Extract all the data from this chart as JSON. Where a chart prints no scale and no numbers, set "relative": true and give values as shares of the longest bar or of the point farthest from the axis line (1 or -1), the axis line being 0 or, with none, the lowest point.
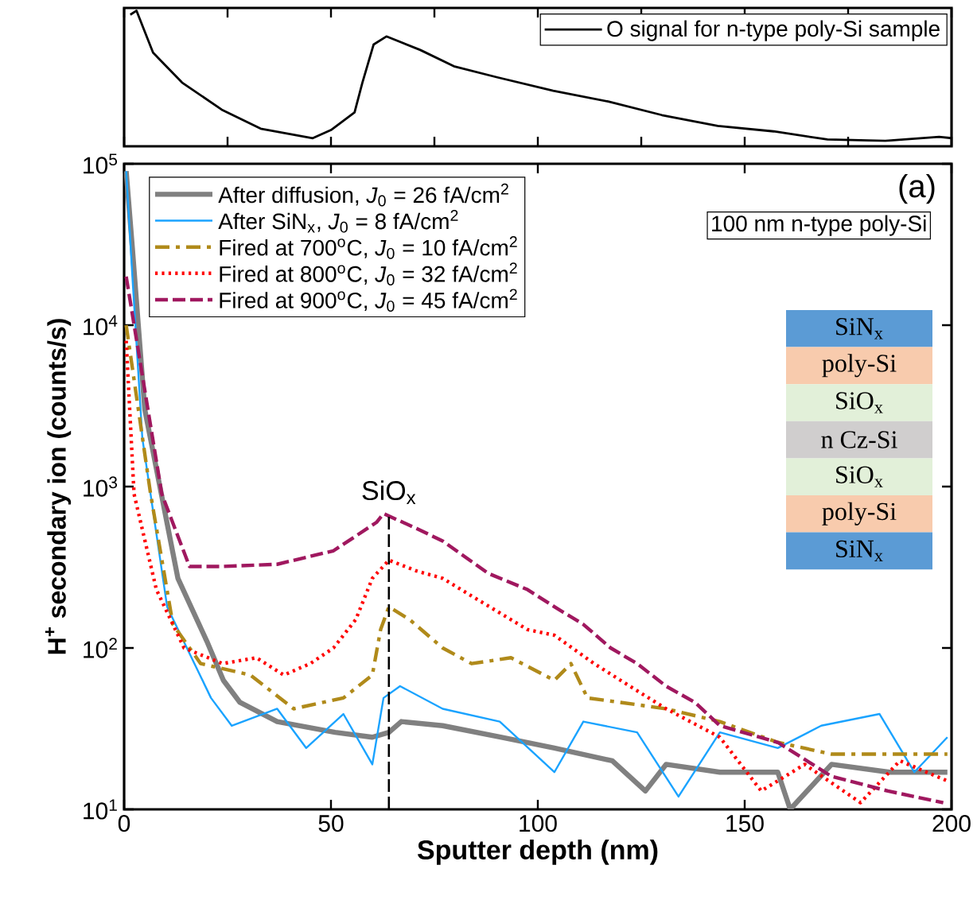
{
  "chart_data": [
    {
      "type": "line",
      "relative": true,
      "xlim": [
        0,
        200
      ],
      "xticks": [
        0,
        25,
        50,
        75,
        100,
        125,
        150,
        175,
        200
      ],
      "tick_labels": false,
      "legend": "top right",
      "series": [
        {
          "name": "O signal for n-type poly-Si sample",
          "color": "#000000",
          "x": [
            1.5,
            3,
            7,
            14,
            23.6,
            33,
            45.6,
            50,
            55.7,
            57.6,
            60.3,
            63.4,
            71.6,
            79.7,
            90,
            103.7,
            117,
            130,
            143.5,
            157,
            170,
            184,
            197,
            200
          ],
          "values": [
            0.97,
            1.0,
            0.69,
            0.47,
            0.27,
            0.13,
            0.06,
            0.12,
            0.25,
            0.47,
            0.75,
            0.81,
            0.71,
            0.59,
            0.51,
            0.41,
            0.33,
            0.23,
            0.15,
            0.11,
            0.05,
            0.04,
            0.07,
            0.06
          ]
        }
      ]
    },
    {
      "type": "line",
      "log": "y",
      "xlabel": "Sputter depth (nm)",
      "ylabel": "H$^{+}$ secondary ion (counts/s)",
      "xlim": [
        0,
        200
      ],
      "ylim": [
        10,
        100000
      ],
      "xticks": [
        0,
        50,
        100,
        150,
        200
      ],
      "yticks": [
        {
          "value": 10,
          "label": "10$^{1}$"
        },
        {
          "value": 100,
          "label": "10$^{2}$"
        },
        {
          "value": 1000,
          "label": "10$^{3}$"
        },
        {
          "value": 10000,
          "label": "10$^{4}$"
        },
        {
          "value": 100000,
          "label": "10$^{5}$"
        }
      ],
      "legend": "top left",
      "ref_lines": [
        {
          "axis": "x",
          "value": 64,
          "label": "SiO$_{x}$",
          "color": "#000000",
          "line_style": "dashed"
        }
      ],
      "annotations": [
        "(a)",
        "100 nm n-type poly-Si",
        "SiN$_{x}$",
        "poly-Si",
        "SiO$_{x}$",
        "n Cz-Si",
        "SiO$_{x}$",
        "poly-Si",
        "SiN$_{x}$"
      ],
      "series": [
        {
          "name": "After diffusion, *J*$_{0}$ = 26 fA/cm$^{2}$",
          "color": "#808080",
          "line_style": "solid",
          "x": [
            0.5,
            2,
            5,
            9,
            13,
            20,
            24,
            28,
            37,
            51,
            60,
            64,
            67,
            77,
            91,
            104,
            118,
            126,
            131,
            144,
            158,
            161,
            171,
            185,
            199
          ],
          "values": [
            90000,
            30000,
            3000,
            900,
            270,
            110,
            63,
            46,
            35,
            30,
            28,
            30,
            35,
            33,
            28,
            24,
            20,
            13,
            19,
            17,
            17,
            10,
            19,
            17,
            17
          ]
        },
        {
          "name": "After SiN$_{x}$, *J*$_{0}$ = 8 fA/cm$^{2}$",
          "color": "#1aa3ff",
          "line_style": "solid",
          "x": [
            0.5,
            2,
            4.4,
            10.4,
            17,
            21,
            26,
            37,
            44,
            53,
            60,
            62.7,
            66.7,
            77,
            90.8,
            104,
            111,
            124,
            134,
            144,
            158,
            168.5,
            182.6,
            191,
            199
          ],
          "values": [
            90000,
            20000,
            2000,
            180,
            80,
            49,
            33,
            42,
            24,
            39,
            19,
            49,
            58,
            42,
            35,
            17,
            35,
            30,
            12,
            30,
            24,
            33,
            39,
            17,
            28
          ]
        },
        {
          "name": "Fired at 700$^{o}$C, *J*$_{0}$ = 10 fA/cm$^{2}$",
          "color": "#b08a1a",
          "line_style": "dashdot",
          "x": [
            0.5,
            6.4,
            11.8,
            18.5,
            30.5,
            41,
            53,
            60,
            62,
            64,
            69,
            77,
            84,
            93.5,
            104,
            108,
            112,
            120,
            131,
            144,
            158,
            171,
            184.6,
            199
          ],
          "values": [
            10000,
            900,
            140,
            80,
            68,
            42,
            49,
            68,
            130,
            180,
            150,
            100,
            80,
            87,
            63,
            80,
            49,
            46,
            42,
            35,
            26,
            22,
            22,
            22
          ]
        },
        {
          "name": "Fired at 800$^{o}$C, *J*$_{0}$ = 32 fA/cm$^{2}$",
          "color": "#ff0000",
          "line_style": "dotted",
          "x": [
            0.5,
            2.4,
            7.8,
            14.5,
            23.8,
            32,
            38.6,
            45,
            50.6,
            56,
            60,
            64,
            70.7,
            77,
            84,
            90.8,
            97.5,
            104,
            113.6,
            120,
            131,
            144,
            154,
            164.5,
            178,
            187.5,
            199
          ],
          "values": [
            8000,
            900,
            230,
            100,
            80,
            87,
            68,
            80,
            100,
            150,
            270,
            350,
            300,
            270,
            210,
            165,
            130,
            120,
            80,
            63,
            42,
            28,
            13,
            19,
            11,
            20,
            15
          ]
        },
        {
          "name": "Fired at 900$^{o}$C, *J*$_{0}$ = 45 fA/cm$^{2}$",
          "color": "#a0185f",
          "line_style": "dashed",
          "x": [
            0.5,
            9.1,
            15.8,
            23.8,
            37,
            50.6,
            61,
            62.7,
            70.7,
            77,
            88,
            97.5,
            104,
            111,
            117.6,
            124,
            131,
            138,
            144,
            158,
            171,
            184.6,
            198
          ],
          "values": [
            20000,
            900,
            320,
            320,
            330,
            400,
            600,
            680,
            550,
            460,
            290,
            230,
            180,
            140,
            100,
            80,
            58,
            46,
            33,
            26,
            16,
            13,
            11
          ]
        }
      ]
    }
  ]
}
